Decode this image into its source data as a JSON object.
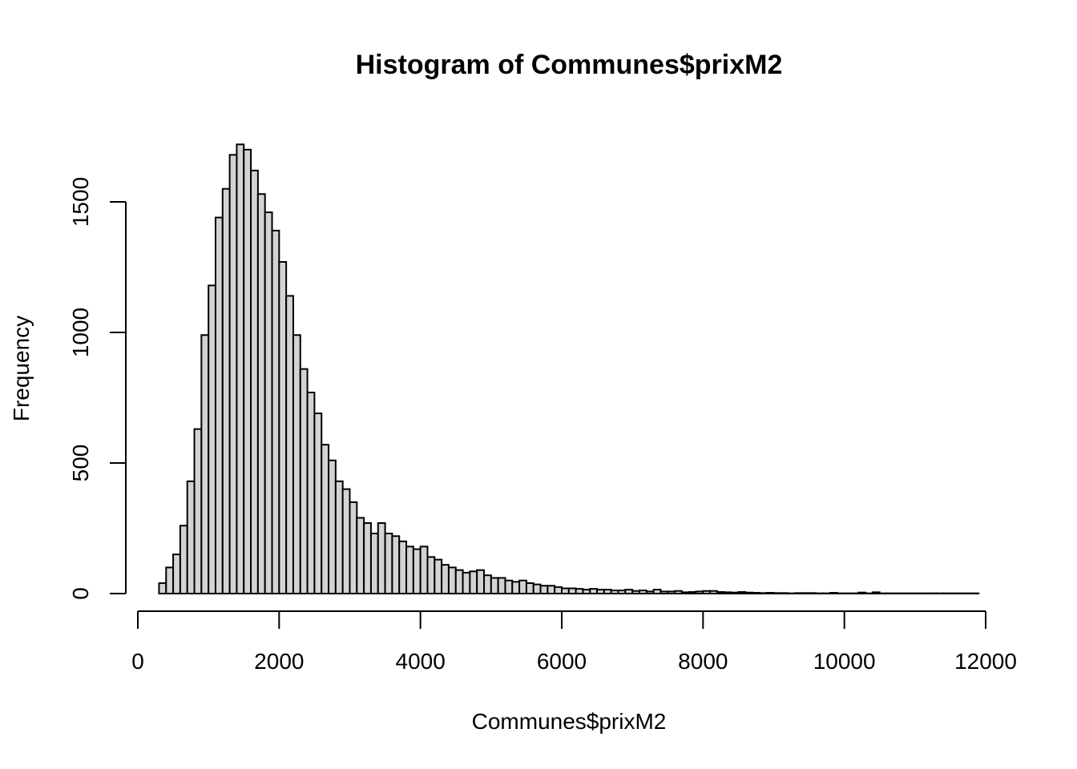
{
  "chart_data": {
    "type": "bar",
    "title": "Histogram of Communes$prixM2",
    "xlabel": "Communes$prixM2",
    "ylabel": "Frequency",
    "xlim": [
      0,
      12000
    ],
    "ylim": [
      0,
      1750
    ],
    "x_ticks": [
      0,
      2000,
      4000,
      6000,
      8000,
      10000,
      12000
    ],
    "y_ticks": [
      0,
      500,
      1000,
      1500
    ],
    "bin_width": 100,
    "bin_start": 300,
    "values": [
      40,
      100,
      150,
      260,
      430,
      630,
      990,
      1180,
      1440,
      1550,
      1680,
      1720,
      1700,
      1620,
      1530,
      1460,
      1390,
      1270,
      1140,
      990,
      860,
      770,
      690,
      570,
      510,
      430,
      400,
      350,
      290,
      270,
      230,
      270,
      230,
      220,
      200,
      180,
      170,
      180,
      140,
      130,
      110,
      100,
      90,
      80,
      85,
      90,
      70,
      60,
      60,
      50,
      45,
      50,
      40,
      35,
      30,
      30,
      25,
      20,
      20,
      18,
      15,
      18,
      15,
      15,
      12,
      12,
      15,
      10,
      12,
      8,
      15,
      8,
      8,
      10,
      5,
      6,
      8,
      10,
      10,
      6,
      5,
      4,
      6,
      4,
      3,
      2,
      3,
      2,
      2,
      1,
      2,
      2,
      2,
      1,
      1,
      3,
      1,
      1,
      1,
      4,
      1,
      5,
      1,
      1,
      1,
      1,
      1,
      1,
      1,
      1,
      1,
      1,
      1,
      1,
      1,
      1
    ]
  }
}
